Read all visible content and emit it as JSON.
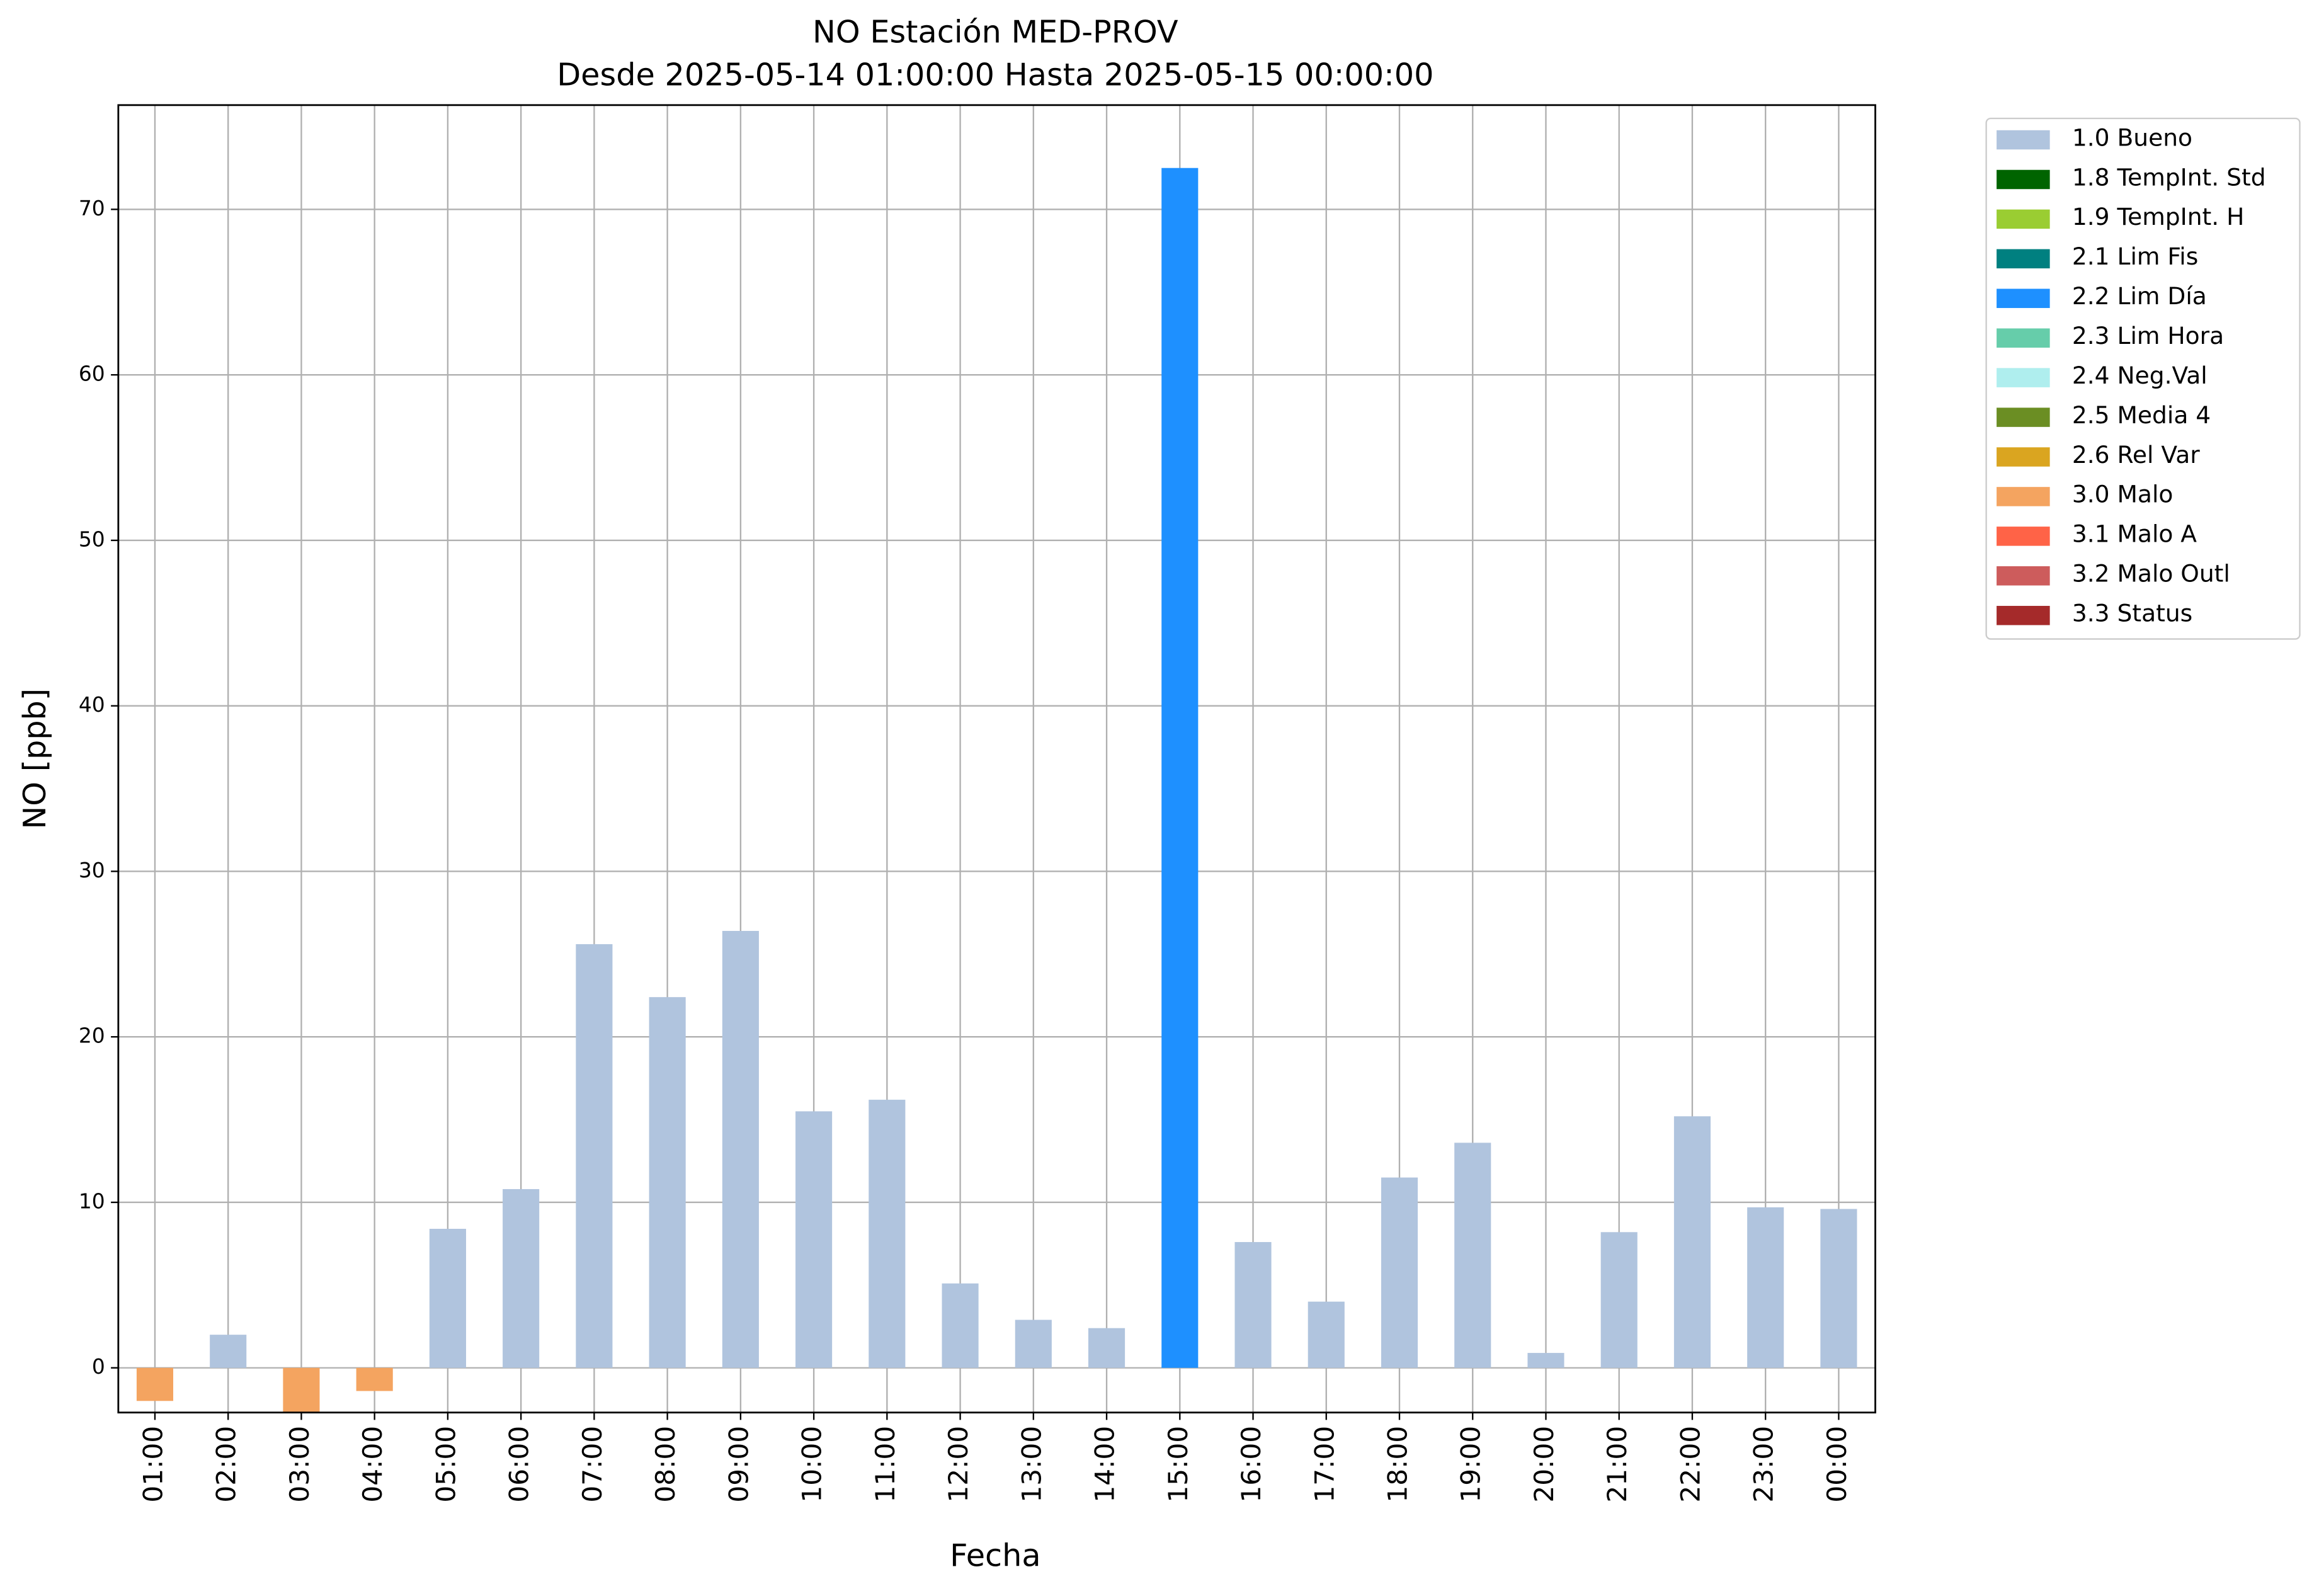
{
  "chart_data": {
    "type": "bar",
    "title": "NO Estación MED-PROV",
    "subtitle": "Desde 2025-05-14 01:00:00 Hasta 2025-05-15 00:00:00",
    "x_label": "Fecha",
    "y_label": "NO [ppb]",
    "categories": [
      "01:00",
      "02:00",
      "03:00",
      "04:00",
      "05:00",
      "06:00",
      "07:00",
      "08:00",
      "09:00",
      "10:00",
      "11:00",
      "12:00",
      "13:00",
      "14:00",
      "15:00",
      "16:00",
      "17:00",
      "18:00",
      "19:00",
      "20:00",
      "21:00",
      "22:00",
      "23:00",
      "00:00"
    ],
    "series": [
      {
        "name": "1.0 Bueno",
        "color": "#b0c4de",
        "values": [
          null,
          2.0,
          null,
          null,
          8.4,
          10.8,
          25.6,
          22.4,
          26.4,
          15.5,
          16.2,
          5.1,
          2.9,
          2.4,
          null,
          7.6,
          4.0,
          11.5,
          13.6,
          0.9,
          8.2,
          15.2,
          9.7,
          9.6
        ]
      },
      {
        "name": "1.8 TempInt. Std",
        "color": "#006400",
        "values": [
          null,
          null,
          null,
          null,
          null,
          null,
          null,
          null,
          null,
          null,
          null,
          null,
          null,
          null,
          null,
          null,
          null,
          null,
          null,
          null,
          null,
          null,
          null,
          null
        ]
      },
      {
        "name": "1.9 TempInt. H",
        "color": "#9acd32",
        "values": [
          null,
          null,
          null,
          null,
          null,
          null,
          null,
          null,
          null,
          null,
          null,
          null,
          null,
          null,
          null,
          null,
          null,
          null,
          null,
          null,
          null,
          null,
          null,
          null
        ]
      },
      {
        "name": "2.1 Lim Fis",
        "color": "#008080",
        "values": [
          null,
          null,
          null,
          null,
          null,
          null,
          null,
          null,
          null,
          null,
          null,
          null,
          null,
          null,
          null,
          null,
          null,
          null,
          null,
          null,
          null,
          null,
          null,
          null
        ]
      },
      {
        "name": "2.2 Lim Día",
        "color": "#1e90ff",
        "values": [
          null,
          null,
          null,
          null,
          null,
          null,
          null,
          null,
          null,
          null,
          null,
          null,
          null,
          null,
          72.5,
          null,
          null,
          null,
          null,
          null,
          null,
          null,
          null,
          null
        ]
      },
      {
        "name": "2.3 Lim Hora",
        "color": "#66cdaa",
        "values": [
          null,
          null,
          null,
          null,
          null,
          null,
          null,
          null,
          null,
          null,
          null,
          null,
          null,
          null,
          null,
          null,
          null,
          null,
          null,
          null,
          null,
          null,
          null,
          null
        ]
      },
      {
        "name": "2.4 Neg.Val",
        "color": "#afeeee",
        "values": [
          null,
          null,
          null,
          null,
          null,
          null,
          null,
          null,
          null,
          null,
          null,
          null,
          null,
          null,
          null,
          null,
          null,
          null,
          null,
          null,
          null,
          null,
          null,
          null
        ]
      },
      {
        "name": "2.5 Media 4",
        "color": "#6b8e23",
        "values": [
          null,
          null,
          null,
          null,
          null,
          null,
          null,
          null,
          null,
          null,
          null,
          null,
          null,
          null,
          null,
          null,
          null,
          null,
          null,
          null,
          null,
          null,
          null,
          null
        ]
      },
      {
        "name": "2.6 Rel Var",
        "color": "#daa520",
        "values": [
          null,
          null,
          null,
          null,
          null,
          null,
          null,
          null,
          null,
          null,
          null,
          null,
          null,
          null,
          null,
          null,
          null,
          null,
          null,
          null,
          null,
          null,
          null,
          null
        ]
      },
      {
        "name": "3.0 Malo",
        "color": "#f4a460",
        "values": [
          -2.0,
          null,
          -2.7,
          -1.4,
          null,
          null,
          null,
          null,
          null,
          null,
          null,
          null,
          null,
          null,
          null,
          null,
          null,
          null,
          null,
          null,
          null,
          null,
          null,
          null
        ]
      },
      {
        "name": "3.1 Malo A",
        "color": "#ff6347",
        "values": [
          null,
          null,
          null,
          null,
          null,
          null,
          null,
          null,
          null,
          null,
          null,
          null,
          null,
          null,
          null,
          null,
          null,
          null,
          null,
          null,
          null,
          null,
          null,
          null
        ]
      },
      {
        "name": "3.2 Malo Outl",
        "color": "#cd5c5c",
        "values": [
          null,
          null,
          null,
          null,
          null,
          null,
          null,
          null,
          null,
          null,
          null,
          null,
          null,
          null,
          null,
          null,
          null,
          null,
          null,
          null,
          null,
          null,
          null,
          null
        ]
      },
      {
        "name": "3.3 Status",
        "color": "#a52a2a",
        "values": [
          null,
          null,
          null,
          null,
          null,
          null,
          null,
          null,
          null,
          null,
          null,
          null,
          null,
          null,
          null,
          null,
          null,
          null,
          null,
          null,
          null,
          null,
          null,
          null
        ]
      }
    ],
    "ylim": [
      -2.7,
      76.3
    ],
    "yticks": [
      0,
      10,
      20,
      30,
      40,
      50,
      60,
      70
    ],
    "grid": true,
    "legend": "outside-right"
  }
}
